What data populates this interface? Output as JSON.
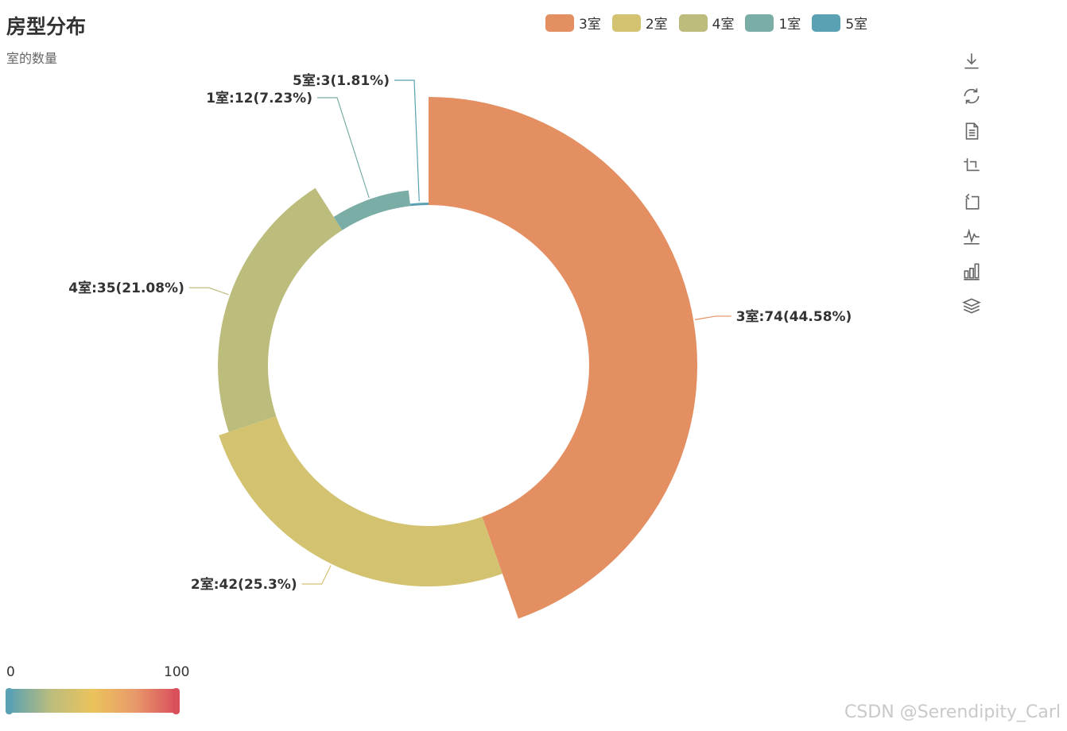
{
  "title": "房型分布",
  "subtitle": "室的数量",
  "legend": [
    {
      "label": "3室",
      "color": "#e38f62"
    },
    {
      "label": "2室",
      "color": "#d3c270"
    },
    {
      "label": "4室",
      "color": "#bcbd7d"
    },
    {
      "label": "1室",
      "color": "#79ada5"
    },
    {
      "label": "5室",
      "color": "#5aa1b3"
    }
  ],
  "toolbox": [
    "download-icon",
    "refresh-icon",
    "data-view-icon",
    "zoom-icon",
    "zoom-reset-icon",
    "line-chart-icon",
    "bar-chart-icon",
    "stack-icon"
  ],
  "visual_map": {
    "min": "0",
    "max": "100",
    "colors": [
      "#5aa1b3",
      "#bcbd7d",
      "#ebc35c",
      "#e89a6a",
      "#d94f5c"
    ]
  },
  "watermark": "CSDN @Serendipity_Carl",
  "chart_data": {
    "type": "pie",
    "rose_type": "radius",
    "categories": [
      "3室",
      "2室",
      "4室",
      "1室",
      "5室"
    ],
    "values": [
      74,
      42,
      35,
      12,
      3
    ],
    "percents": [
      "44.58%",
      "25.3%",
      "21.08%",
      "7.23%",
      "1.81%"
    ],
    "labels": [
      "3室:74(44.58%)",
      "2室:42(25.3%)",
      "4室:35(21.08%)",
      "1室:12(7.23%)",
      "5室:3(1.81%)"
    ],
    "colors": [
      "#e38f62",
      "#d3c270",
      "#bcbd7d",
      "#79ada5",
      "#5aa1b3"
    ],
    "legend_position": "top"
  }
}
